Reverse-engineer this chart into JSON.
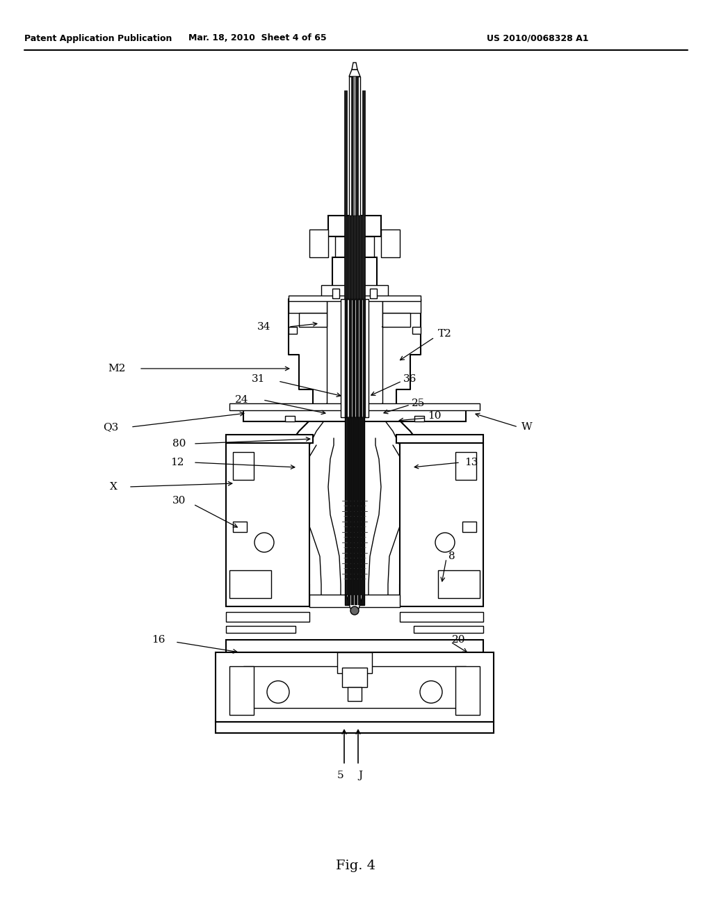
{
  "header_left": "Patent Application Publication",
  "header_mid": "Mar. 18, 2010  Sheet 4 of 65",
  "header_right": "US 2010/0068328 A1",
  "fig_label": "Fig. 4",
  "bg_color": "#ffffff",
  "line_color": "#000000",
  "figsize": [
    10.24,
    13.2
  ],
  "dpi": 100
}
